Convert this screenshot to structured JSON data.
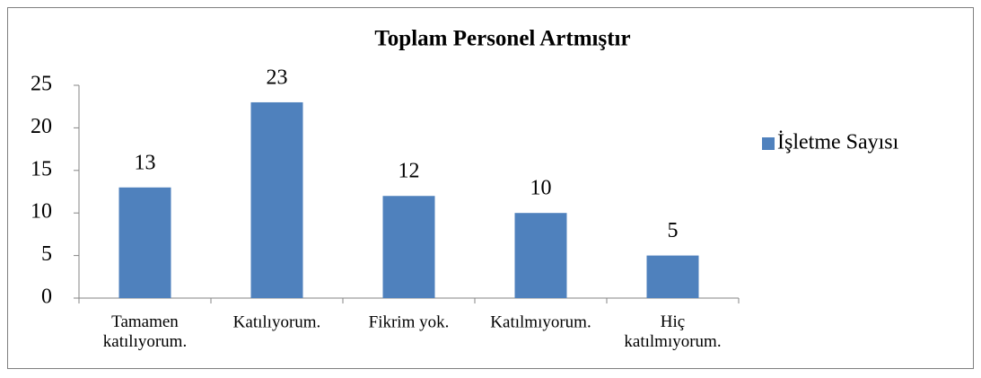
{
  "chart_data": {
    "type": "bar",
    "title": "Toplam Personel Artmıştır",
    "categories": [
      "Tamamen katılıyorum.",
      "Katılıyorum.",
      "Fikrim yok.",
      "Katılmıyorum.",
      "Hiç katılmıyorum."
    ],
    "series": [
      {
        "name": "İşletme Sayısı",
        "color": "#4f81bd",
        "values": [
          13,
          23,
          12,
          10,
          5
        ]
      }
    ],
    "ylim": [
      0,
      25
    ],
    "yticks": [
      0,
      5,
      10,
      15,
      20,
      25
    ],
    "grid": false,
    "legend": "right"
  }
}
